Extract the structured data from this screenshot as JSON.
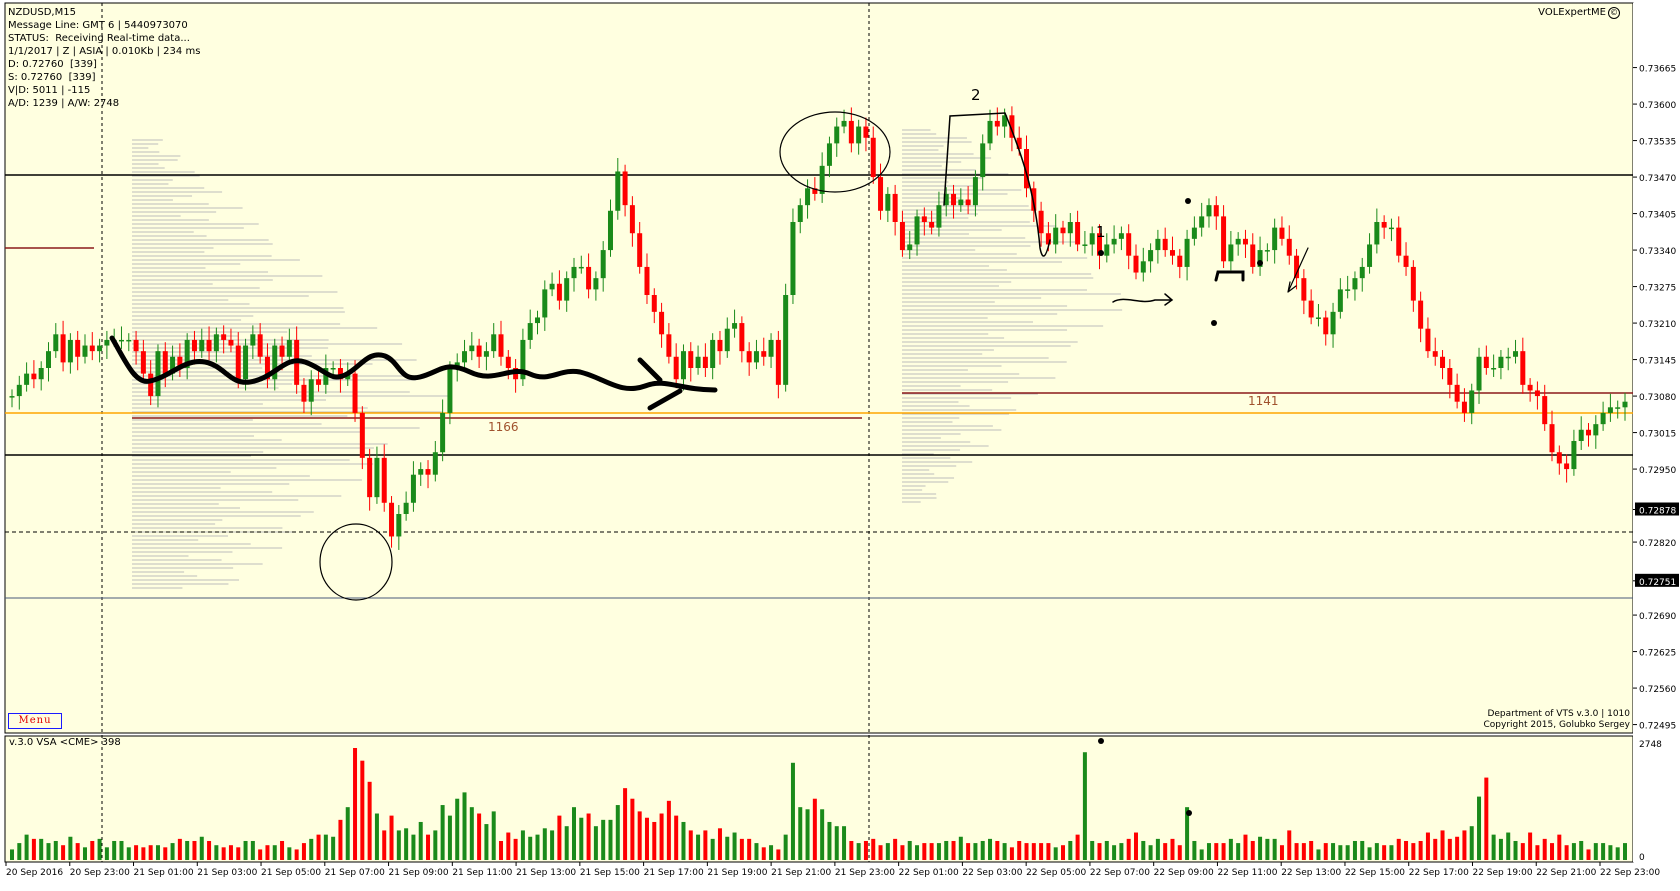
{
  "header": {
    "symbol_line": "NZDUSD,M15",
    "message_line": "Message Line: GMT 6 | 5440973070",
    "status_line": "STATUS:  Receiving Real-time data...",
    "session_line": "1/1/2017 | Z | ASIA | 0.010Kb | 234 ms",
    "d_line": "D: 0.72760  [339]",
    "s_line": "S: 0.72760  [339]",
    "vd_line": "V|D: 5011 | -115",
    "ad_line": "A/D: 1239 | A/W: 2748"
  },
  "brand": "VOLExpertME",
  "brand_icon": "copyright-circle-icon",
  "menu_label": "Menu",
  "credits": [
    "Department of VTS  v.3.0 | 1010",
    "Copyright 2015, Golubko Sergey"
  ],
  "vsa_label": "v.3.0 VSA <CME> 398",
  "annotations": {
    "mark_1": "1",
    "mark_2": "2"
  },
  "colors": {
    "background": "#ffffe0",
    "bull": "#1a8a1a",
    "bear": "#ff0000",
    "orange_level": "#ffa500",
    "brown_level": "#8b1a1a"
  },
  "chart_data": {
    "type": "candlestick",
    "symbol": "NZDUSD",
    "timeframe": "M15",
    "price_axis_ticks": [
      "0.73665",
      "0.73600",
      "0.73535",
      "0.73470",
      "0.73405",
      "0.73340",
      "0.73275",
      "0.73210",
      "0.73145",
      "0.73080",
      "0.73015",
      "0.72950",
      "0.72878",
      "0.72820",
      "0.72751",
      "0.72690",
      "0.72625",
      "0.72560",
      "0.72495"
    ],
    "highlighted_prices": [
      "0.72878",
      "0.72751"
    ],
    "ylim": [
      0.7248,
      0.7378
    ],
    "x_tick_labels": [
      "20 Sep 2016",
      "20 Sep 23:00",
      "21 Sep 01:00",
      "21 Sep 03:00",
      "21 Sep 05:00",
      "21 Sep 07:00",
      "21 Sep 09:00",
      "21 Sep 11:00",
      "21 Sep 13:00",
      "21 Sep 15:00",
      "21 Sep 17:00",
      "21 Sep 19:00",
      "21 Sep 21:00",
      "21 Sep 23:00",
      "22 Sep 01:00",
      "22 Sep 03:00",
      "22 Sep 05:00",
      "22 Sep 07:00",
      "22 Sep 09:00",
      "22 Sep 11:00",
      "22 Sep 13:00",
      "22 Sep 15:00",
      "22 Sep 17:00",
      "22 Sep 19:00",
      "22 Sep 21:00",
      "22 Sep 23:00"
    ],
    "closes": [
      0.7308,
      0.731,
      0.7312,
      0.7311,
      0.7313,
      0.7316,
      0.7319,
      0.7314,
      0.7318,
      0.7315,
      0.7317,
      0.7316,
      0.7317,
      0.7318,
      0.7318,
      0.7318,
      0.7318,
      0.7316,
      0.7312,
      0.7308,
      0.7316,
      0.7312,
      0.7315,
      0.7313,
      0.7318,
      0.7316,
      0.7318,
      0.7316,
      0.7319,
      0.7318,
      0.7317,
      0.7311,
      0.7317,
      0.7319,
      0.7315,
      0.7311,
      0.7317,
      0.7315,
      0.7318,
      0.731,
      0.7307,
      0.7311,
      0.731,
      0.7313,
      0.7313,
      0.7311,
      0.7312,
      0.7305,
      0.7297,
      0.729,
      0.7297,
      0.7289,
      0.7283,
      0.7287,
      0.7289,
      0.7294,
      0.7295,
      0.7294,
      0.7298,
      0.7305,
      0.7313,
      0.7314,
      0.7316,
      0.7317,
      0.7315,
      0.7316,
      0.7319,
      0.7315,
      0.7313,
      0.7311,
      0.7318,
      0.7321,
      0.7322,
      0.7327,
      0.7328,
      0.7325,
      0.7329,
      0.7331,
      0.7331,
      0.7327,
      0.7329,
      0.7334,
      0.7341,
      0.7348,
      0.7342,
      0.7337,
      0.7331,
      0.7326,
      0.7323,
      0.7319,
      0.7315,
      0.7311,
      0.7316,
      0.7313,
      0.7315,
      0.7313,
      0.7318,
      0.7316,
      0.732,
      0.7321,
      0.7316,
      0.7314,
      0.7316,
      0.7315,
      0.7318,
      0.731,
      0.7326,
      0.7339,
      0.7342,
      0.7345,
      0.7344,
      0.7349,
      0.7353,
      0.7356,
      0.7357,
      0.7353,
      0.7356,
      0.7354,
      0.7347,
      0.7341,
      0.7344,
      0.7339,
      0.7334,
      0.7335,
      0.734,
      0.7339,
      0.7338,
      0.7342,
      0.7344,
      0.7342,
      0.7343,
      0.7342,
      0.7347,
      0.7353,
      0.7357,
      0.7356,
      0.7358,
      0.7354,
      0.7352,
      0.7345,
      0.7341,
      0.7337,
      0.7335,
      0.7338,
      0.7337,
      0.7339,
      0.7335,
      0.7335,
      0.7337,
      0.7333,
      0.7335,
      0.7336,
      0.7337,
      0.7333,
      0.733,
      0.7332,
      0.7334,
      0.7336,
      0.7334,
      0.7333,
      0.7331,
      0.7336,
      0.7338,
      0.734,
      0.7342,
      0.734,
      0.7332,
      0.7335,
      0.7336,
      0.7335,
      0.7331,
      0.7334,
      0.7334,
      0.7338,
      0.7336,
      0.7333,
      0.7329,
      0.7325,
      0.7322,
      0.7322,
      0.7319,
      0.7323,
      0.7327,
      0.7327,
      0.7329,
      0.7331,
      0.7335,
      0.7339,
      0.7338,
      0.7338,
      0.7333,
      0.7331,
      0.7325,
      0.732,
      0.7316,
      0.7315,
      0.7313,
      0.731,
      0.7307,
      0.7305,
      0.7309,
      0.7315,
      0.7313,
      0.7313,
      0.7315,
      0.7315,
      0.7316,
      0.731,
      0.7309,
      0.7308,
      0.7303,
      0.7298,
      0.7296,
      0.7295,
      0.73,
      0.7302,
      0.7301,
      0.7303,
      0.7305,
      0.7306,
      0.7306,
      0.7307
    ],
    "overlays": {
      "horizontal_levels": [
        "0.73600",
        "0.73015",
        "0.72878",
        "0.72751",
        "0.73125",
        "0.73110"
      ],
      "level_labels": [
        "1166",
        "1141"
      ]
    },
    "volume_panel": {
      "label": "v.3.0 VSA <CME> 398",
      "axis_max_label": "2748",
      "axis_min_label": "0",
      "volumes": [
        5,
        8,
        12,
        10,
        10,
        8,
        9,
        7,
        11,
        8,
        6,
        9,
        10,
        6,
        9,
        9,
        6,
        7,
        6,
        7,
        7,
        6,
        8,
        10,
        9,
        9,
        11,
        9,
        7,
        6,
        7,
        6,
        9,
        9,
        5,
        7,
        7,
        9,
        6,
        5,
        8,
        10,
        12,
        12,
        11,
        19,
        25,
        53,
        47,
        37,
        22,
        14,
        21,
        14,
        15,
        12,
        18,
        12,
        14,
        26,
        21,
        29,
        32,
        25,
        22,
        17,
        23,
        9,
        13,
        10,
        14,
        11,
        12,
        15,
        14,
        21,
        16,
        25,
        20,
        22,
        16,
        19,
        19,
        26,
        34,
        29,
        23,
        20,
        18,
        22,
        28,
        21,
        18,
        14,
        12,
        14,
        10,
        15,
        11,
        13,
        10,
        10,
        8,
        6,
        7,
        5,
        12,
        46,
        25,
        24,
        29,
        24,
        18,
        16,
        16,
        9,
        8,
        9,
        10,
        7,
        8,
        10,
        7,
        9,
        7,
        8,
        8,
        8,
        9,
        9,
        11,
        8,
        8,
        9,
        10,
        9,
        8,
        6,
        9,
        8,
        8,
        8,
        8,
        6,
        7,
        9,
        12,
        51,
        9,
        8,
        9,
        7,
        8,
        10,
        13,
        9,
        7,
        10,
        8,
        10,
        7,
        25,
        9,
        5,
        8,
        8,
        8,
        10,
        8,
        12,
        9,
        11,
        10,
        10,
        7,
        14,
        8,
        8,
        9,
        5,
        8,
        8,
        7,
        7,
        9,
        9,
        6,
        8,
        7,
        7,
        10,
        9,
        8,
        9,
        13,
        10,
        14,
        10,
        11,
        14,
        16,
        30,
        39,
        12,
        10,
        13,
        9,
        8,
        13,
        7,
        10,
        8,
        12,
        7,
        8,
        9,
        5,
        8,
        8,
        7,
        6,
        8
      ]
    }
  }
}
